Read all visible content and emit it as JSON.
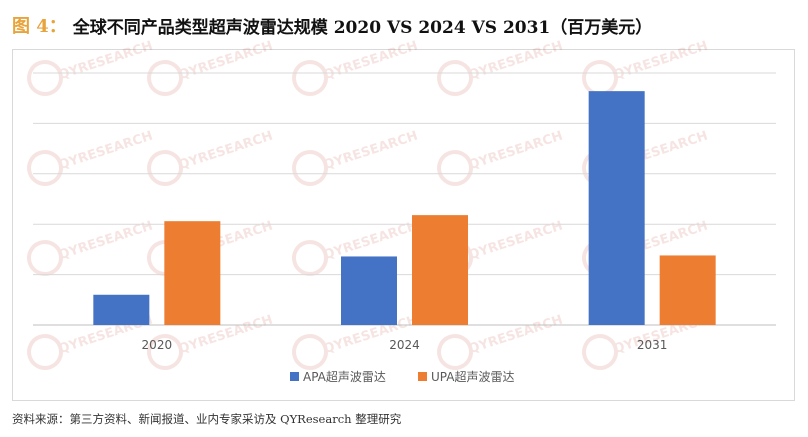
{
  "figure": {
    "label": "图 4：",
    "title": "全球不同产品类型超声波雷达规模 2020 VS 2024 VS 2031（百万美元）"
  },
  "source": "资料来源：第三方资料、新闻报道、业内专家采访及 QYResearch 整理研究",
  "watermark": "QYRESEARCH",
  "chart_data": {
    "type": "bar",
    "title": "全球不同产品类型超声波雷达规模 2020 VS 2024 VS 2031（百万美元）",
    "categories": [
      "2020",
      "2024",
      "2031"
    ],
    "series": [
      {
        "name": "APA超声波雷达",
        "color": "#4472c4",
        "values": [
          30,
          68,
          232
        ]
      },
      {
        "name": "UPA超声波雷达",
        "color": "#ed7d31",
        "values": [
          103,
          109,
          69
        ]
      }
    ],
    "ylim": [
      0,
      250
    ],
    "gridlines": [
      0,
      50,
      100,
      150,
      200,
      250
    ],
    "y_tick_labels_shown": false,
    "grid": true,
    "legend_position": "bottom"
  }
}
